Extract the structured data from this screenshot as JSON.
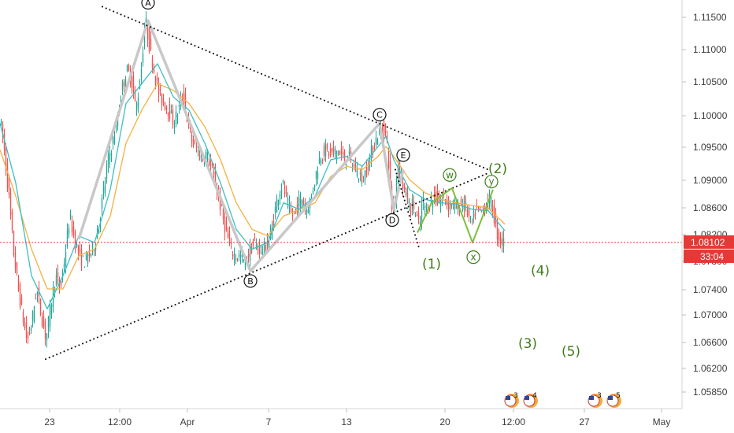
{
  "chart_data": {
    "type": "candlestick",
    "title": "",
    "xlabel": "",
    "ylabel": "",
    "x_ticks": [
      "23",
      "12:00",
      "Apr",
      "7",
      "13",
      "20",
      "12:00",
      "27",
      "May"
    ],
    "y_ticks": [
      "1.11500",
      "1.11000",
      "1.10500",
      "1.10000",
      "1.09500",
      "1.09000",
      "1.08600",
      "1.08200",
      "1.07800",
      "1.07400",
      "1.07000",
      "1.06600",
      "1.06200",
      "1.05850"
    ],
    "ylim": [
      1.0555,
      1.1185
    ],
    "grid": false,
    "last_price": {
      "label": "1.08102",
      "value": 1.08102,
      "countdown": "33:04",
      "color": "#e53935"
    },
    "price_path": [
      [
        0,
        1.1008
      ],
      [
        6,
        1.096
      ],
      [
        12,
        1.089
      ],
      [
        18,
        1.0805
      ],
      [
        24,
        1.0745
      ],
      [
        30,
        1.07
      ],
      [
        36,
        1.066
      ],
      [
        42,
        1.069
      ],
      [
        48,
        1.074
      ],
      [
        54,
        1.07
      ],
      [
        60,
        1.0665
      ],
      [
        66,
        1.0715
      ],
      [
        72,
        1.076
      ],
      [
        78,
        1.074
      ],
      [
        84,
        1.079
      ],
      [
        90,
        1.085
      ],
      [
        96,
        1.0815
      ],
      [
        102,
        1.079
      ],
      [
        108,
        1.078
      ],
      [
        114,
        1.079
      ],
      [
        120,
        1.08
      ],
      [
        126,
        1.083
      ],
      [
        132,
        1.088
      ],
      [
        138,
        1.093
      ],
      [
        144,
        1.096
      ],
      [
        150,
        1.099
      ],
      [
        156,
        1.104
      ],
      [
        162,
        1.107
      ],
      [
        168,
        1.106
      ],
      [
        174,
        1.101
      ],
      [
        180,
        1.106
      ],
      [
        186,
        1.1148
      ],
      [
        192,
        1.11
      ],
      [
        198,
        1.1065
      ],
      [
        204,
        1.103
      ],
      [
        210,
        1.102
      ],
      [
        216,
        1.101
      ],
      [
        222,
        1.099
      ],
      [
        228,
        1.101
      ],
      [
        234,
        1.1035
      ],
      [
        240,
        1.099
      ],
      [
        246,
        1.096
      ],
      [
        252,
        1.095
      ],
      [
        258,
        1.0935
      ],
      [
        264,
        1.0945
      ],
      [
        270,
        1.092
      ],
      [
        276,
        1.0895
      ],
      [
        282,
        1.086
      ],
      [
        288,
        1.083
      ],
      [
        294,
        1.08
      ],
      [
        300,
        1.079
      ],
      [
        306,
        1.079
      ],
      [
        312,
        1.078
      ],
      [
        318,
        1.0795
      ],
      [
        324,
        1.081
      ],
      [
        330,
        1.08
      ],
      [
        336,
        1.08
      ],
      [
        342,
        1.081
      ],
      [
        348,
        1.084
      ],
      [
        354,
        1.088
      ],
      [
        360,
        1.09
      ],
      [
        366,
        1.087
      ],
      [
        372,
        1.085
      ],
      [
        378,
        1.086
      ],
      [
        384,
        1.088
      ],
      [
        390,
        1.086
      ],
      [
        396,
        1.0875
      ],
      [
        402,
        1.091
      ],
      [
        408,
        1.094
      ],
      [
        414,
        1.095
      ],
      [
        420,
        1.0945
      ],
      [
        426,
        1.0945
      ],
      [
        432,
        1.095
      ],
      [
        438,
        1.0935
      ],
      [
        444,
        1.094
      ],
      [
        450,
        1.0925
      ],
      [
        456,
        1.0915
      ],
      [
        462,
        1.0905
      ],
      [
        468,
        1.0925
      ],
      [
        474,
        1.095
      ],
      [
        480,
        1.097
      ],
      [
        486,
        1.0985
      ],
      [
        490,
        1.098
      ],
      [
        494,
        1.095
      ],
      [
        498,
        1.087
      ],
      [
        502,
        1.086
      ],
      [
        506,
        1.093
      ],
      [
        510,
        1.092
      ],
      [
        514,
        1.089
      ],
      [
        518,
        1.088
      ],
      [
        522,
        1.086
      ],
      [
        526,
        1.087
      ],
      [
        530,
        1.085
      ],
      [
        534,
        1.083
      ],
      [
        538,
        1.0875
      ],
      [
        542,
        1.086
      ],
      [
        546,
        1.0865
      ],
      [
        550,
        1.0875
      ],
      [
        554,
        1.088
      ],
      [
        558,
        1.087
      ],
      [
        562,
        1.0875
      ],
      [
        566,
        1.088
      ],
      [
        570,
        1.0865
      ],
      [
        576,
        1.087
      ],
      [
        582,
        1.086
      ],
      [
        588,
        1.087
      ],
      [
        594,
        1.086
      ],
      [
        600,
        1.0835
      ],
      [
        606,
        1.086
      ],
      [
        612,
        1.0855
      ],
      [
        618,
        1.0865
      ],
      [
        624,
        1.0875
      ],
      [
        628,
        1.0855
      ],
      [
        632,
        1.0825
      ],
      [
        636,
        1.0815
      ],
      [
        640,
        1.081
      ]
    ],
    "ema_fast": [
      [
        0,
        1.099
      ],
      [
        20,
        1.09
      ],
      [
        40,
        1.076
      ],
      [
        60,
        1.071
      ],
      [
        80,
        1.076
      ],
      [
        100,
        1.082
      ],
      [
        120,
        1.081
      ],
      [
        140,
        1.089
      ],
      [
        160,
        1.102
      ],
      [
        180,
        1.105
      ],
      [
        200,
        1.108
      ],
      [
        220,
        1.103
      ],
      [
        240,
        1.101
      ],
      [
        260,
        1.096
      ],
      [
        280,
        1.09
      ],
      [
        300,
        1.083
      ],
      [
        320,
        1.08
      ],
      [
        340,
        1.081
      ],
      [
        360,
        1.087
      ],
      [
        380,
        1.086
      ],
      [
        400,
        1.088
      ],
      [
        420,
        1.0935
      ],
      [
        440,
        1.094
      ],
      [
        460,
        1.0925
      ],
      [
        480,
        1.0955
      ],
      [
        490,
        1.097
      ],
      [
        500,
        1.0935
      ],
      [
        520,
        1.089
      ],
      [
        540,
        1.0875
      ],
      [
        560,
        1.087
      ],
      [
        580,
        1.0868
      ],
      [
        600,
        1.086
      ],
      [
        620,
        1.0858
      ],
      [
        641,
        1.0828
      ]
    ],
    "ema_slow": [
      [
        0,
        1.095
      ],
      [
        20,
        1.088
      ],
      [
        40,
        1.08
      ],
      [
        60,
        1.074
      ],
      [
        80,
        1.074
      ],
      [
        100,
        1.079
      ],
      [
        120,
        1.08
      ],
      [
        140,
        1.085
      ],
      [
        160,
        1.096
      ],
      [
        180,
        1.101
      ],
      [
        200,
        1.105
      ],
      [
        220,
        1.104
      ],
      [
        240,
        1.102
      ],
      [
        260,
        1.0985
      ],
      [
        280,
        1.0935
      ],
      [
        300,
        1.087
      ],
      [
        320,
        1.083
      ],
      [
        340,
        1.082
      ],
      [
        360,
        1.085
      ],
      [
        380,
        1.086
      ],
      [
        400,
        1.087
      ],
      [
        420,
        1.091
      ],
      [
        440,
        1.0925
      ],
      [
        460,
        1.092
      ],
      [
        480,
        1.094
      ],
      [
        490,
        1.0955
      ],
      [
        500,
        1.094
      ],
      [
        520,
        1.0905
      ],
      [
        540,
        1.0885
      ],
      [
        560,
        1.0875
      ],
      [
        580,
        1.087
      ],
      [
        600,
        1.0866
      ],
      [
        620,
        1.0862
      ],
      [
        641,
        1.0838
      ]
    ],
    "triangle_upper": [
      [
        130,
        1.1166
      ],
      [
        620,
        1.092
      ]
    ],
    "triangle_lower": [
      [
        58,
        1.0634
      ],
      [
        620,
        1.0915
      ]
    ],
    "abcde_path": [
      [
        100,
        1.0815
      ],
      [
        188,
        1.1145
      ],
      [
        318,
        1.0767
      ],
      [
        482,
        1.099
      ],
      [
        500,
        1.086
      ],
      [
        512,
        1.092
      ]
    ],
    "abcde_labels": [
      {
        "text": "A",
        "x": 188,
        "y": 1.1172
      },
      {
        "text": "B",
        "x": 318,
        "y": 1.0752
      },
      {
        "text": "C",
        "x": 482,
        "y": 1.1003
      },
      {
        "text": "D",
        "x": 498,
        "y": 1.0844
      },
      {
        "text": "E",
        "x": 512,
        "y": 1.0942
      }
    ],
    "wave1_dots": [
      [
        502,
        1.092
      ],
      [
        532,
        1.0802
      ]
    ],
    "wxy_path": [
      [
        530,
        1.0825
      ],
      [
        548,
        1.087
      ],
      [
        574,
        1.0892
      ],
      [
        600,
        1.081
      ],
      [
        626,
        1.089
      ]
    ],
    "wxy_labels": [
      {
        "text": "w",
        "x": 571,
        "y": 1.0912
      },
      {
        "text": "x",
        "x": 601,
        "y": 1.0788
      },
      {
        "text": "y",
        "x": 624,
        "y": 1.0902
      }
    ],
    "wave_labels": [
      {
        "text": "(1)",
        "x": 548,
        "y": 1.0778
      },
      {
        "text": "(2)",
        "x": 632,
        "y": 1.0922
      },
      {
        "text": "(3)",
        "x": 670,
        "y": 1.0658
      },
      {
        "text": "(4)",
        "x": 686,
        "y": 1.0768
      },
      {
        "text": "(5)",
        "x": 725,
        "y": 1.0646
      }
    ],
    "events": [
      {
        "x": 650,
        "labels": [
          "3",
          "4"
        ]
      },
      {
        "x": 756,
        "labels": [
          "3",
          "5"
        ]
      }
    ]
  }
}
